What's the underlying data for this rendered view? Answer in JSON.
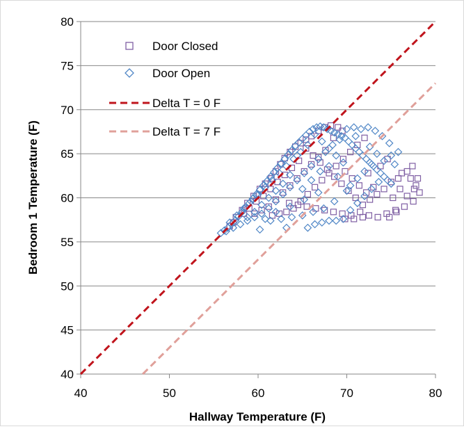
{
  "chart_data": {
    "type": "scatter",
    "title": "",
    "xlabel": "Hallway Temperature (F)",
    "ylabel": "Bedroom  1 Temperature (F)",
    "xlim": [
      40,
      80
    ],
    "ylim": [
      40,
      80
    ],
    "x_ticks": [
      40,
      50,
      60,
      70,
      80
    ],
    "y_ticks": [
      40,
      45,
      50,
      55,
      60,
      65,
      70,
      75,
      80
    ],
    "grid": "horizontal",
    "legend_position": "top-left",
    "colors": {
      "door_closed": "#7f5fa3",
      "door_open": "#4f86c6",
      "delta0": "#c0141c",
      "delta7": "#e0a09a"
    },
    "series": [
      {
        "name": "Door Closed",
        "marker": "square",
        "points": [
          [
            57.5,
            57.8
          ],
          [
            58.2,
            58.6
          ],
          [
            58.8,
            59.4
          ],
          [
            59.5,
            60.2
          ],
          [
            60.2,
            61.0
          ],
          [
            60.8,
            61.6
          ],
          [
            61.5,
            62.2
          ],
          [
            62.0,
            63.0
          ],
          [
            62.5,
            63.8
          ],
          [
            63.0,
            64.5
          ],
          [
            63.6,
            65.2
          ],
          [
            64.2,
            65.8
          ],
          [
            64.8,
            66.2
          ],
          [
            65.4,
            66.6
          ],
          [
            66.0,
            67.0
          ],
          [
            66.8,
            67.6
          ],
          [
            67.5,
            68.0
          ],
          [
            68.2,
            68.2
          ],
          [
            69.0,
            68.0
          ],
          [
            69.5,
            67.6
          ],
          [
            68.5,
            66.8
          ],
          [
            67.6,
            65.4
          ],
          [
            66.8,
            64.6
          ],
          [
            66.0,
            63.8
          ],
          [
            65.2,
            63.0
          ],
          [
            64.4,
            62.2
          ],
          [
            63.6,
            61.4
          ],
          [
            62.8,
            60.6
          ],
          [
            62.0,
            59.8
          ],
          [
            61.2,
            59.0
          ],
          [
            60.4,
            58.6
          ],
          [
            59.6,
            58.2
          ],
          [
            63.5,
            59.4
          ],
          [
            64.5,
            59.2
          ],
          [
            65.5,
            59.0
          ],
          [
            66.5,
            58.8
          ],
          [
            67.5,
            58.6
          ],
          [
            68.5,
            58.4
          ],
          [
            69.5,
            58.2
          ],
          [
            70.5,
            58.0
          ],
          [
            71.5,
            58.4
          ],
          [
            72.5,
            58.0
          ],
          [
            73.5,
            57.8
          ],
          [
            74.5,
            58.2
          ],
          [
            75.5,
            58.6
          ],
          [
            76.5,
            59.0
          ],
          [
            77.5,
            59.6
          ],
          [
            78.2,
            60.6
          ],
          [
            77.8,
            61.4
          ],
          [
            77.2,
            62.2
          ],
          [
            76.8,
            63.0
          ],
          [
            77.4,
            63.6
          ],
          [
            76.2,
            62.8
          ],
          [
            75.8,
            62.2
          ],
          [
            75.0,
            61.8
          ],
          [
            74.2,
            61.0
          ],
          [
            73.4,
            60.4
          ],
          [
            72.6,
            59.8
          ],
          [
            71.8,
            59.2
          ],
          [
            71.0,
            60.0
          ],
          [
            70.2,
            60.8
          ],
          [
            69.4,
            61.6
          ],
          [
            68.6,
            62.4
          ],
          [
            67.8,
            63.2
          ],
          [
            67.0,
            64.0
          ],
          [
            66.2,
            64.8
          ],
          [
            65.4,
            65.6
          ],
          [
            64.6,
            64.2
          ],
          [
            63.8,
            63.4
          ],
          [
            63.0,
            62.6
          ],
          [
            62.2,
            61.8
          ],
          [
            61.4,
            61.0
          ],
          [
            60.6,
            60.2
          ],
          [
            59.8,
            59.6
          ],
          [
            59.0,
            58.8
          ],
          [
            58.4,
            58.2
          ],
          [
            57.2,
            57.2
          ],
          [
            56.8,
            56.8
          ],
          [
            72.4,
            62.8
          ],
          [
            73.8,
            63.6
          ],
          [
            74.6,
            64.4
          ],
          [
            72.0,
            66.8
          ],
          [
            71.2,
            66.0
          ],
          [
            70.4,
            65.2
          ],
          [
            69.6,
            64.4
          ],
          [
            68.8,
            63.6
          ],
          [
            68.0,
            62.8
          ],
          [
            67.2,
            62.0
          ],
          [
            66.4,
            61.2
          ],
          [
            65.6,
            60.4
          ],
          [
            64.8,
            59.6
          ],
          [
            64.0,
            58.8
          ],
          [
            63.2,
            58.4
          ],
          [
            62.4,
            58.2
          ],
          [
            61.6,
            58.0
          ],
          [
            69.8,
            57.6
          ],
          [
            70.8,
            57.6
          ],
          [
            71.8,
            57.8
          ],
          [
            74.8,
            57.8
          ],
          [
            75.6,
            58.4
          ],
          [
            76.8,
            60.2
          ],
          [
            77.6,
            61.0
          ],
          [
            78.0,
            62.2
          ],
          [
            76.0,
            61.0
          ],
          [
            75.2,
            60.0
          ],
          [
            73.0,
            61.2
          ],
          [
            72.2,
            60.6
          ],
          [
            71.4,
            61.4
          ],
          [
            70.6,
            62.2
          ],
          [
            69.8,
            63.0
          ]
        ]
      },
      {
        "name": "Door Open",
        "marker": "diamond",
        "points": [
          [
            55.8,
            56.0
          ],
          [
            56.2,
            56.3
          ],
          [
            56.6,
            56.6
          ],
          [
            57.0,
            57.0
          ],
          [
            57.4,
            57.4
          ],
          [
            57.8,
            57.9
          ],
          [
            58.2,
            58.4
          ],
          [
            58.6,
            58.9
          ],
          [
            59.0,
            59.4
          ],
          [
            59.4,
            59.9
          ],
          [
            59.8,
            60.4
          ],
          [
            60.2,
            60.9
          ],
          [
            60.6,
            61.4
          ],
          [
            61.0,
            61.9
          ],
          [
            61.4,
            62.4
          ],
          [
            61.8,
            62.9
          ],
          [
            62.2,
            63.4
          ],
          [
            62.6,
            63.9
          ],
          [
            63.0,
            64.4
          ],
          [
            63.4,
            64.9
          ],
          [
            63.8,
            65.4
          ],
          [
            64.2,
            65.9
          ],
          [
            64.6,
            66.3
          ],
          [
            65.0,
            66.7
          ],
          [
            65.4,
            67.1
          ],
          [
            65.8,
            67.5
          ],
          [
            66.2,
            67.8
          ],
          [
            66.6,
            68.0
          ],
          [
            67.0,
            68.1
          ],
          [
            67.4,
            68.0
          ],
          [
            67.8,
            67.8
          ],
          [
            68.2,
            67.6
          ],
          [
            68.6,
            67.4
          ],
          [
            69.0,
            67.2
          ],
          [
            69.4,
            67.0
          ],
          [
            69.8,
            66.8
          ],
          [
            70.2,
            66.4
          ],
          [
            70.6,
            66.0
          ],
          [
            71.0,
            65.6
          ],
          [
            71.4,
            65.2
          ],
          [
            71.8,
            64.8
          ],
          [
            72.2,
            64.4
          ],
          [
            72.6,
            64.0
          ],
          [
            73.0,
            63.6
          ],
          [
            73.4,
            63.2
          ],
          [
            73.8,
            62.8
          ],
          [
            74.2,
            62.4
          ],
          [
            74.6,
            62.0
          ],
          [
            75.0,
            61.6
          ],
          [
            75.4,
            63.8
          ],
          [
            75.8,
            65.2
          ],
          [
            74.8,
            66.2
          ],
          [
            74.0,
            67.0
          ],
          [
            73.2,
            67.6
          ],
          [
            72.4,
            68.0
          ],
          [
            71.6,
            67.8
          ],
          [
            70.8,
            68.0
          ],
          [
            70.0,
            67.8
          ],
          [
            69.2,
            66.6
          ],
          [
            68.4,
            66.0
          ],
          [
            67.6,
            65.2
          ],
          [
            66.8,
            64.4
          ],
          [
            66.0,
            63.6
          ],
          [
            65.2,
            62.8
          ],
          [
            64.4,
            62.0
          ],
          [
            63.6,
            61.2
          ],
          [
            62.8,
            60.4
          ],
          [
            62.0,
            59.6
          ],
          [
            61.2,
            58.8
          ],
          [
            60.4,
            58.2
          ],
          [
            59.6,
            57.8
          ],
          [
            58.8,
            57.4
          ],
          [
            58.0,
            57.0
          ],
          [
            57.2,
            56.6
          ],
          [
            56.4,
            56.2
          ],
          [
            60.2,
            56.4
          ],
          [
            63.2,
            56.6
          ],
          [
            65.6,
            56.6
          ],
          [
            66.4,
            57.0
          ],
          [
            67.2,
            57.2
          ],
          [
            68.0,
            57.4
          ],
          [
            68.8,
            57.4
          ],
          [
            69.6,
            57.6
          ],
          [
            70.4,
            58.6
          ],
          [
            71.2,
            59.4
          ],
          [
            72.0,
            60.2
          ],
          [
            72.8,
            61.0
          ],
          [
            73.6,
            61.8
          ],
          [
            66.8,
            60.6
          ],
          [
            65.2,
            59.8
          ],
          [
            63.6,
            59.0
          ],
          [
            62.0,
            58.4
          ],
          [
            60.8,
            57.6
          ],
          [
            70.4,
            61.4
          ],
          [
            71.2,
            62.2
          ],
          [
            72.0,
            63.0
          ],
          [
            72.8,
            63.8
          ],
          [
            69.6,
            64.0
          ],
          [
            68.8,
            64.8
          ],
          [
            68.0,
            65.6
          ],
          [
            67.2,
            66.4
          ],
          [
            66.4,
            67.2
          ],
          [
            65.6,
            66.0
          ],
          [
            64.8,
            65.2
          ],
          [
            64.0,
            64.4
          ],
          [
            63.2,
            63.6
          ],
          [
            62.4,
            62.8
          ],
          [
            61.6,
            62.0
          ],
          [
            60.8,
            61.2
          ],
          [
            60.0,
            60.4
          ],
          [
            59.2,
            59.6
          ],
          [
            58.4,
            58.8
          ],
          [
            57.6,
            58.0
          ],
          [
            56.8,
            57.2
          ],
          [
            65.0,
            61.0
          ],
          [
            66.0,
            62.0
          ],
          [
            67.0,
            63.0
          ],
          [
            68.0,
            63.6
          ],
          [
            69.0,
            62.4
          ],
          [
            70.0,
            60.8
          ],
          [
            68.6,
            59.6
          ],
          [
            67.4,
            58.8
          ],
          [
            66.2,
            58.4
          ],
          [
            65.0,
            58.0
          ],
          [
            63.8,
            57.8
          ],
          [
            62.6,
            57.6
          ],
          [
            61.4,
            57.4
          ],
          [
            72.6,
            65.8
          ],
          [
            73.4,
            65.0
          ],
          [
            74.2,
            64.2
          ],
          [
            75.0,
            64.8
          ],
          [
            71.0,
            67.0
          ],
          [
            64.4,
            64.8
          ],
          [
            63.6,
            62.6
          ],
          [
            62.8,
            61.6
          ],
          [
            62.0,
            60.8
          ],
          [
            61.2,
            60.0
          ],
          [
            60.4,
            59.2
          ],
          [
            59.6,
            58.4
          ],
          [
            58.8,
            57.8
          ]
        ]
      }
    ],
    "reference_lines": [
      {
        "name": "Delta T = 0 F",
        "style": "dashed",
        "offset": 0
      },
      {
        "name": "Delta T = 7 F",
        "style": "dashed",
        "offset": -7
      }
    ]
  }
}
